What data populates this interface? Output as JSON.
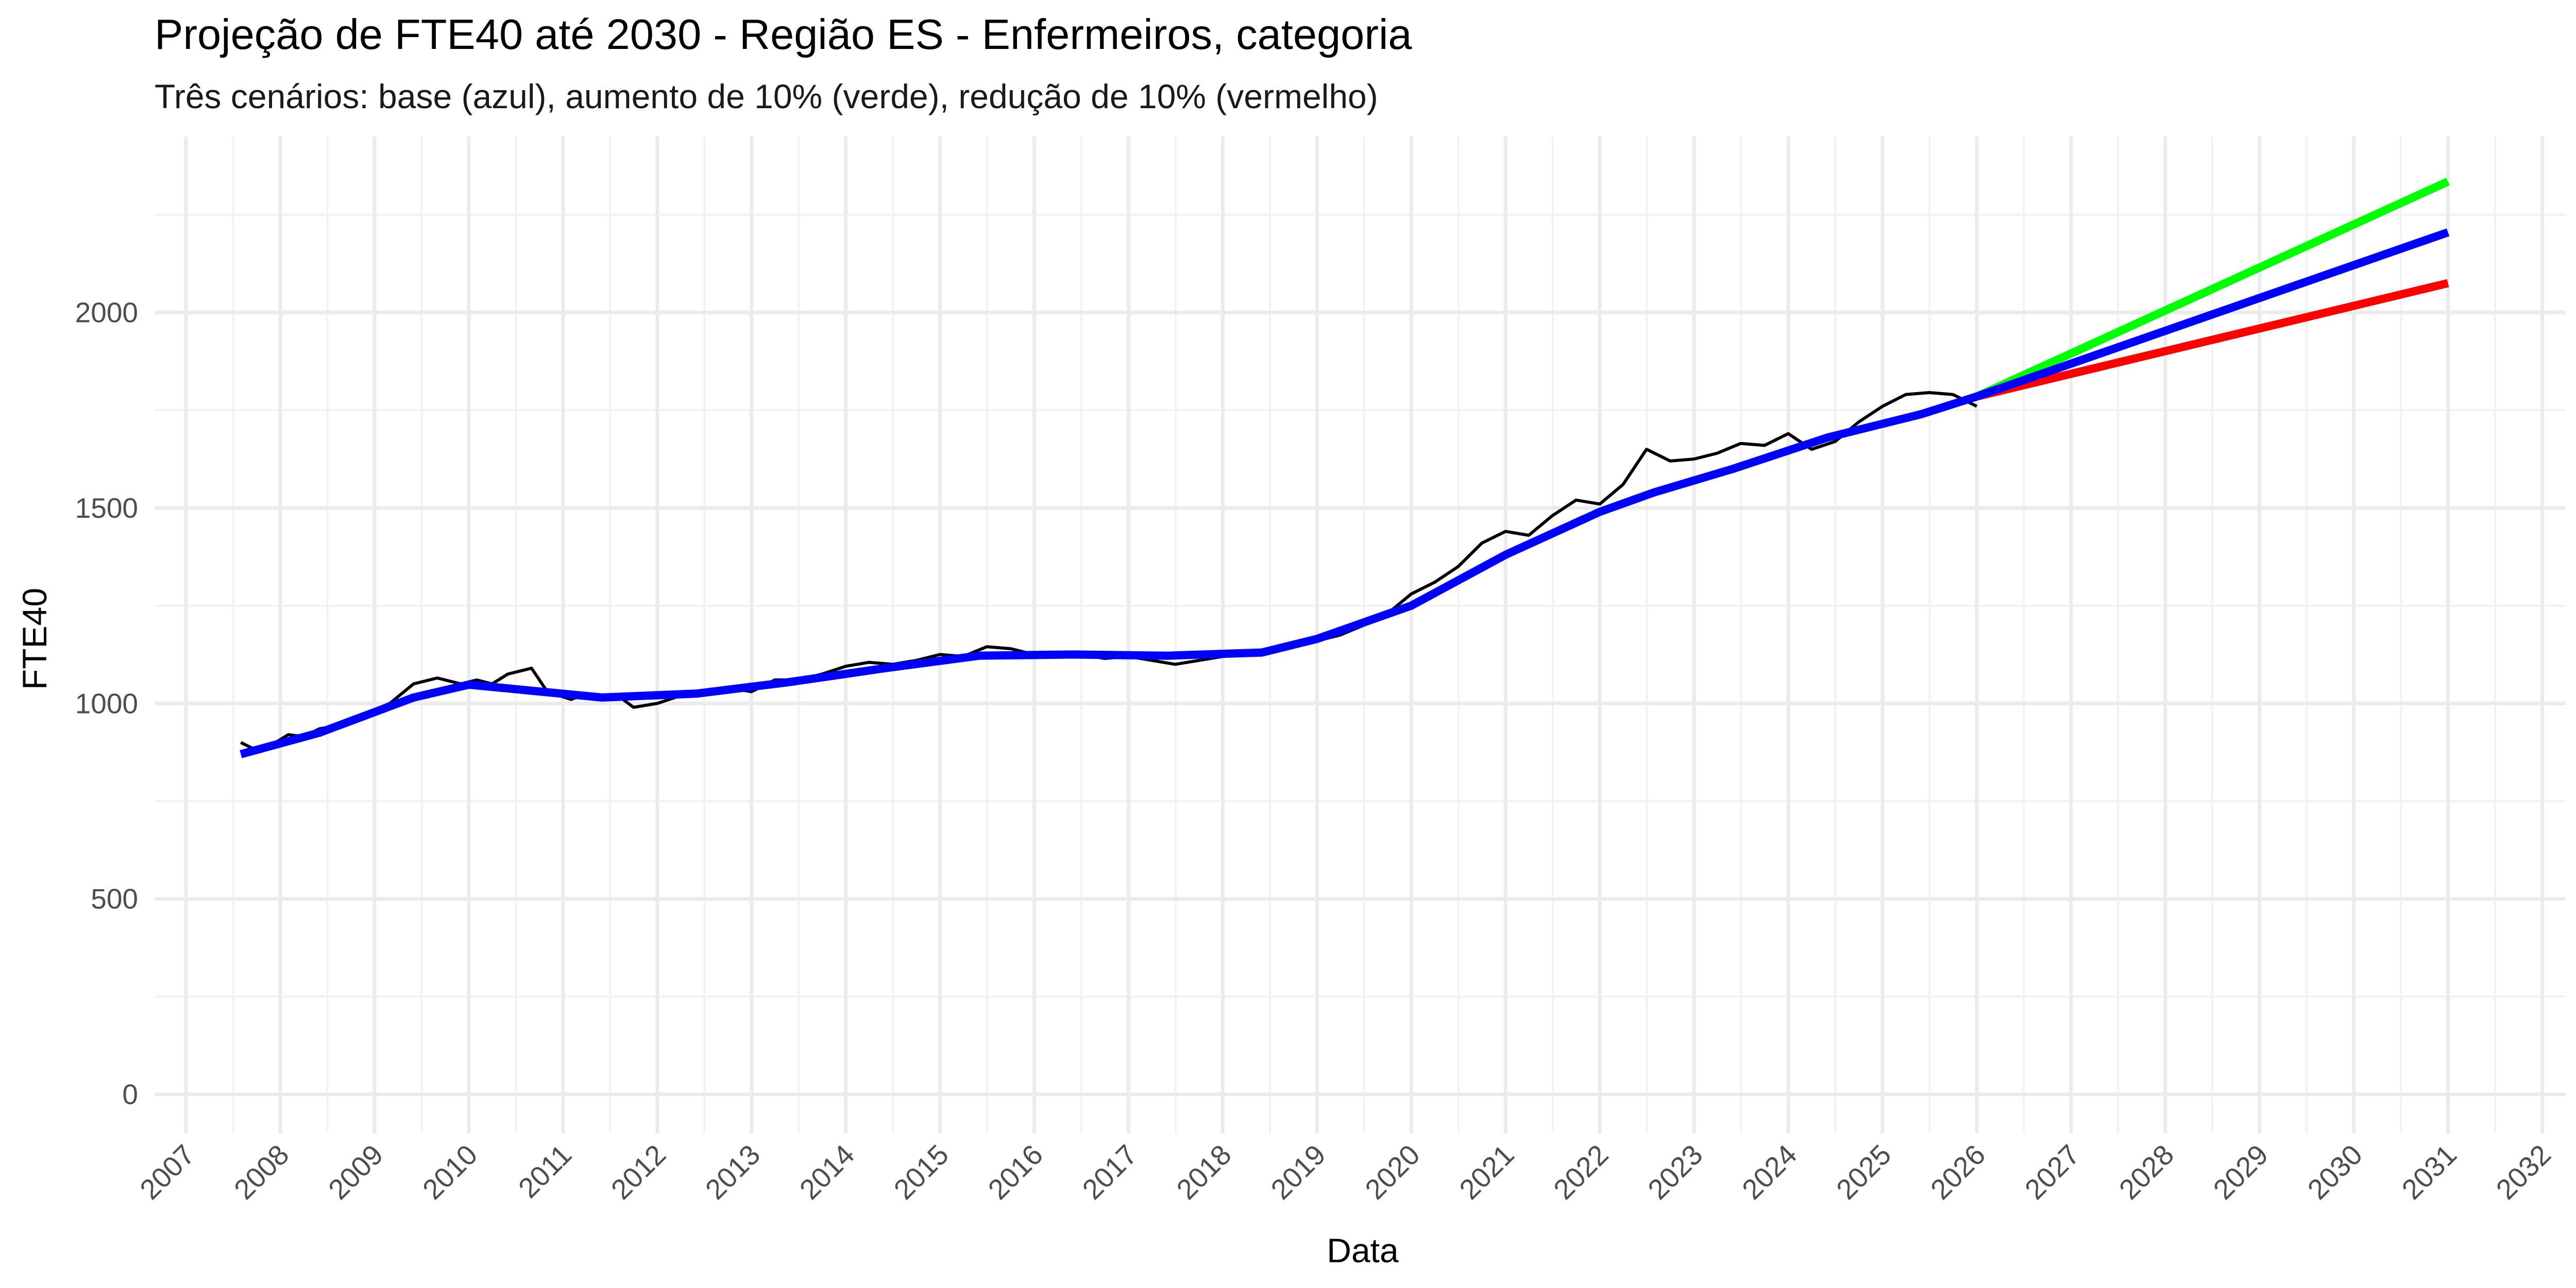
{
  "chart_data": {
    "type": "line",
    "title": "Projeção de FTE40 até 2030 - Região ES - Enfermeiros, categoria",
    "subtitle": "Três cenários: base (azul), aumento de 10% (verde), redução de 10% (vermelho)",
    "xlabel": "Data",
    "ylabel": "FTE40",
    "xlim": [
      "2006-09-01",
      "2032-04-01"
    ],
    "ylim": [
      -100,
      2450
    ],
    "x_ticks": [
      "2007",
      "2008",
      "2009",
      "2010",
      "2011",
      "2012",
      "2013",
      "2014",
      "2015",
      "2016",
      "2017",
      "2018",
      "2019",
      "2020",
      "2021",
      "2022",
      "2023",
      "2024",
      "2025",
      "2026",
      "2027",
      "2028",
      "2029",
      "2030",
      "2031",
      "2032"
    ],
    "y_ticks": [
      0,
      500,
      1000,
      1500,
      2000
    ],
    "grid": true,
    "legend": "none",
    "series": [
      {
        "color": "#000000",
        "points": [
          [
            "2007-08-01",
            900
          ],
          [
            "2007-10-01",
            880
          ],
          [
            "2007-12-01",
            895
          ],
          [
            "2008-02-01",
            920
          ],
          [
            "2008-04-01",
            915
          ],
          [
            "2008-06-01",
            935
          ],
          [
            "2008-09-01",
            945
          ],
          [
            "2008-12-01",
            975
          ],
          [
            "2009-03-01",
            1000
          ],
          [
            "2009-06-01",
            1050
          ],
          [
            "2009-09-01",
            1065
          ],
          [
            "2009-12-01",
            1050
          ],
          [
            "2010-02-01",
            1060
          ],
          [
            "2010-04-01",
            1050
          ],
          [
            "2010-06-01",
            1075
          ],
          [
            "2010-09-01",
            1090
          ],
          [
            "2010-11-01",
            1030
          ],
          [
            "2011-02-01",
            1010
          ],
          [
            "2011-04-01",
            1025
          ],
          [
            "2011-06-01",
            1010
          ],
          [
            "2011-08-01",
            1020
          ],
          [
            "2011-10-01",
            990
          ],
          [
            "2012-01-01",
            1000
          ],
          [
            "2012-04-01",
            1020
          ],
          [
            "2012-07-01",
            1030
          ],
          [
            "2012-10-01",
            1040
          ],
          [
            "2013-01-01",
            1030
          ],
          [
            "2013-04-01",
            1060
          ],
          [
            "2013-07-01",
            1060
          ],
          [
            "2013-10-01",
            1075
          ],
          [
            "2014-01-01",
            1095
          ],
          [
            "2014-04-01",
            1105
          ],
          [
            "2014-07-01",
            1100
          ],
          [
            "2014-10-01",
            1110
          ],
          [
            "2015-01-01",
            1125
          ],
          [
            "2015-04-01",
            1120
          ],
          [
            "2015-07-01",
            1145
          ],
          [
            "2015-10-01",
            1140
          ],
          [
            "2016-01-01",
            1125
          ],
          [
            "2016-04-01",
            1120
          ],
          [
            "2016-07-01",
            1125
          ],
          [
            "2016-10-01",
            1115
          ],
          [
            "2017-01-01",
            1120
          ],
          [
            "2017-04-01",
            1110
          ],
          [
            "2017-07-01",
            1100
          ],
          [
            "2017-10-01",
            1110
          ],
          [
            "2018-01-01",
            1120
          ],
          [
            "2018-04-01",
            1130
          ],
          [
            "2018-07-01",
            1140
          ],
          [
            "2018-10-01",
            1150
          ],
          [
            "2019-01-01",
            1160
          ],
          [
            "2019-04-01",
            1175
          ],
          [
            "2019-07-01",
            1200
          ],
          [
            "2019-10-01",
            1230
          ],
          [
            "2020-01-01",
            1280
          ],
          [
            "2020-04-01",
            1310
          ],
          [
            "2020-07-01",
            1350
          ],
          [
            "2020-10-01",
            1410
          ],
          [
            "2021-01-01",
            1440
          ],
          [
            "2021-04-01",
            1430
          ],
          [
            "2021-07-01",
            1480
          ],
          [
            "2021-10-01",
            1520
          ],
          [
            "2022-01-01",
            1510
          ],
          [
            "2022-04-01",
            1560
          ],
          [
            "2022-07-01",
            1650
          ],
          [
            "2022-10-01",
            1620
          ],
          [
            "2023-01-01",
            1625
          ],
          [
            "2023-04-01",
            1640
          ],
          [
            "2023-07-01",
            1665
          ],
          [
            "2023-10-01",
            1660
          ],
          [
            "2024-01-01",
            1690
          ],
          [
            "2024-04-01",
            1650
          ],
          [
            "2024-07-01",
            1670
          ],
          [
            "2024-10-01",
            1720
          ],
          [
            "2025-01-01",
            1760
          ],
          [
            "2025-04-01",
            1790
          ],
          [
            "2025-07-01",
            1795
          ],
          [
            "2025-10-01",
            1790
          ],
          [
            "2026-01-01",
            1760
          ]
        ]
      },
      {
        "color": "#00ff00",
        "points": [
          [
            "2026-01-01",
            1785
          ],
          [
            "2031-01-01",
            2335
          ]
        ]
      },
      {
        "color": "#ff0000",
        "points": [
          [
            "2026-01-01",
            1785
          ],
          [
            "2031-01-01",
            2075
          ]
        ]
      },
      {
        "color": "#0000ff",
        "points": [
          [
            "2007-08-01",
            870
          ],
          [
            "2008-06-01",
            925
          ],
          [
            "2009-06-01",
            1015
          ],
          [
            "2010-01-01",
            1048
          ],
          [
            "2011-06-01",
            1015
          ],
          [
            "2012-06-01",
            1025
          ],
          [
            "2013-06-01",
            1055
          ],
          [
            "2014-06-01",
            1090
          ],
          [
            "2015-06-01",
            1122
          ],
          [
            "2016-06-01",
            1125
          ],
          [
            "2017-06-01",
            1122
          ],
          [
            "2018-06-01",
            1130
          ],
          [
            "2019-01-01",
            1165
          ],
          [
            "2020-01-01",
            1250
          ],
          [
            "2021-01-01",
            1380
          ],
          [
            "2022-01-01",
            1490
          ],
          [
            "2022-08-01",
            1540
          ],
          [
            "2023-06-01",
            1600
          ],
          [
            "2024-06-01",
            1680
          ],
          [
            "2025-06-01",
            1740
          ],
          [
            "2026-01-01",
            1785
          ],
          [
            "2031-01-01",
            2205
          ]
        ]
      }
    ]
  }
}
